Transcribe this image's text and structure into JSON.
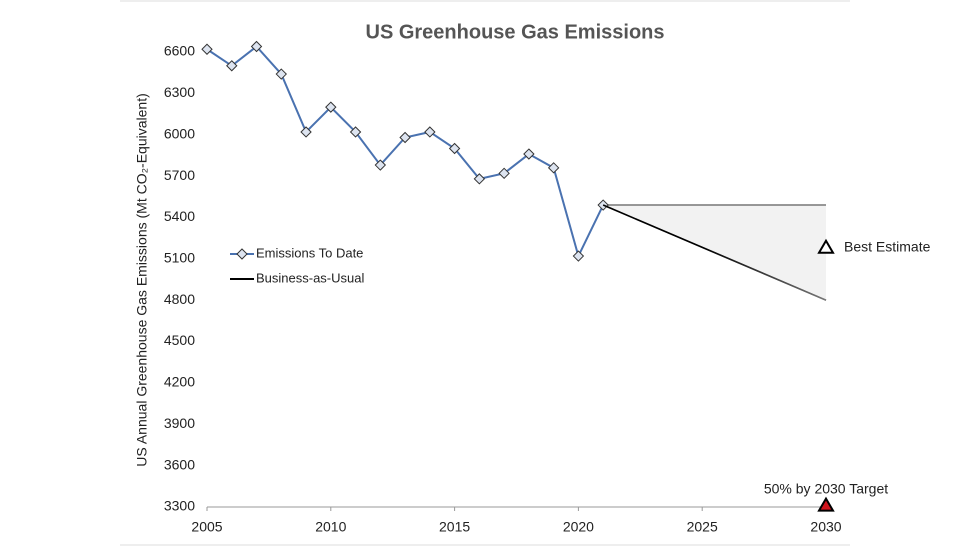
{
  "chart_data": {
    "type": "line",
    "title": "US Greenhouse Gas Emissions",
    "ylabel": "US Annual Greenhouse Gas Emissions (Mt CO₂-Equivalent)",
    "xlim": [
      2005,
      2030
    ],
    "xticks": [
      2005,
      2010,
      2015,
      2020,
      2025,
      2030
    ],
    "ylim": [
      3300,
      6700
    ],
    "yticks": [
      3300,
      3600,
      3900,
      4200,
      4500,
      4800,
      5100,
      5400,
      5700,
      6000,
      6300,
      6600
    ],
    "series": [
      {
        "name": "Emissions To Date",
        "color": "#4a72b0",
        "x": [
          2005,
          2006,
          2007,
          2008,
          2009,
          2010,
          2011,
          2012,
          2013,
          2014,
          2015,
          2016,
          2017,
          2018,
          2019,
          2020,
          2021
        ],
        "values": [
          6620,
          6500,
          6640,
          6440,
          6020,
          6200,
          6020,
          5780,
          5980,
          6020,
          5900,
          5680,
          5720,
          5860,
          5760,
          5120,
          5490
        ]
      },
      {
        "name": "Business-as-Usual",
        "color": "#000000",
        "x": [
          2021,
          2030
        ],
        "values": [
          5490,
          4800
        ]
      }
    ],
    "band": {
      "color": "#f2f2f2",
      "x": [
        2021,
        2030
      ],
      "upper": [
        5490,
        5490
      ],
      "lower": [
        5490,
        4800
      ]
    },
    "markers": [
      {
        "label": "Best Estimate",
        "x": 2030,
        "y": 5180,
        "color": "#ffffff"
      },
      {
        "label": "50% by 2030 Target",
        "x": 2030,
        "y": 3310,
        "color": "#d0141c"
      }
    ]
  }
}
